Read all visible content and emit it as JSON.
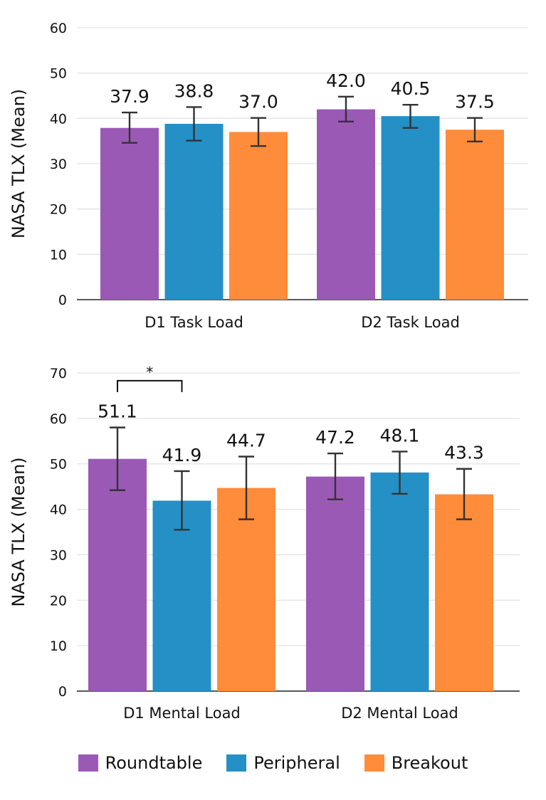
{
  "legend": {
    "items": [
      {
        "label": "Roundtable",
        "color": "#9B59B6"
      },
      {
        "label": "Peripheral",
        "color": "#2490C6"
      },
      {
        "label": "Breakout",
        "color": "#FF8C3A"
      }
    ]
  },
  "chart_data": [
    {
      "type": "bar",
      "ylabel": "NASA TLX (Mean)",
      "ylim": [
        0,
        60
      ],
      "yticks": [
        0,
        10,
        20,
        30,
        40,
        50,
        60
      ],
      "categories": [
        "D1 Task Load",
        "D2 Task Load"
      ],
      "series": [
        {
          "name": "Roundtable",
          "values": [
            37.9,
            42.0
          ],
          "err_low": [
            34.6,
            39.3
          ],
          "err_high": [
            41.3,
            44.8
          ],
          "labels": [
            "37.9",
            "42.0"
          ]
        },
        {
          "name": "Peripheral",
          "values": [
            38.8,
            40.5
          ],
          "err_low": [
            35.1,
            37.9
          ],
          "err_high": [
            42.5,
            43.0
          ],
          "labels": [
            "38.8",
            "40.5"
          ]
        },
        {
          "name": "Breakout",
          "values": [
            37.0,
            37.5
          ],
          "err_low": [
            33.9,
            34.9
          ],
          "err_high": [
            40.1,
            40.1
          ],
          "labels": [
            "37.0",
            "37.5"
          ]
        }
      ],
      "significance": []
    },
    {
      "type": "bar",
      "ylabel": "NASA TLX (Mean)",
      "ylim": [
        0,
        70
      ],
      "yticks": [
        0,
        10,
        20,
        30,
        40,
        50,
        60,
        70
      ],
      "categories": [
        "D1 Mental Load",
        "D2 Mental Load"
      ],
      "series": [
        {
          "name": "Roundtable",
          "values": [
            51.1,
            47.2
          ],
          "err_low": [
            44.2,
            42.2
          ],
          "err_high": [
            58.0,
            52.3
          ],
          "labels": [
            "51.1",
            "47.2"
          ]
        },
        {
          "name": "Peripheral",
          "values": [
            41.9,
            48.1
          ],
          "err_low": [
            35.5,
            43.4
          ],
          "err_high": [
            48.4,
            52.7
          ],
          "labels": [
            "41.9",
            "48.1"
          ]
        },
        {
          "name": "Breakout",
          "values": [
            44.7,
            43.3
          ],
          "err_low": [
            37.8,
            37.8
          ],
          "err_high": [
            51.6,
            48.9
          ],
          "labels": [
            "44.7",
            "43.3"
          ]
        }
      ],
      "significance": [
        {
          "category_index": 0,
          "from_series": 0,
          "to_series": 1,
          "level": 68.3,
          "label": "*"
        }
      ]
    }
  ]
}
